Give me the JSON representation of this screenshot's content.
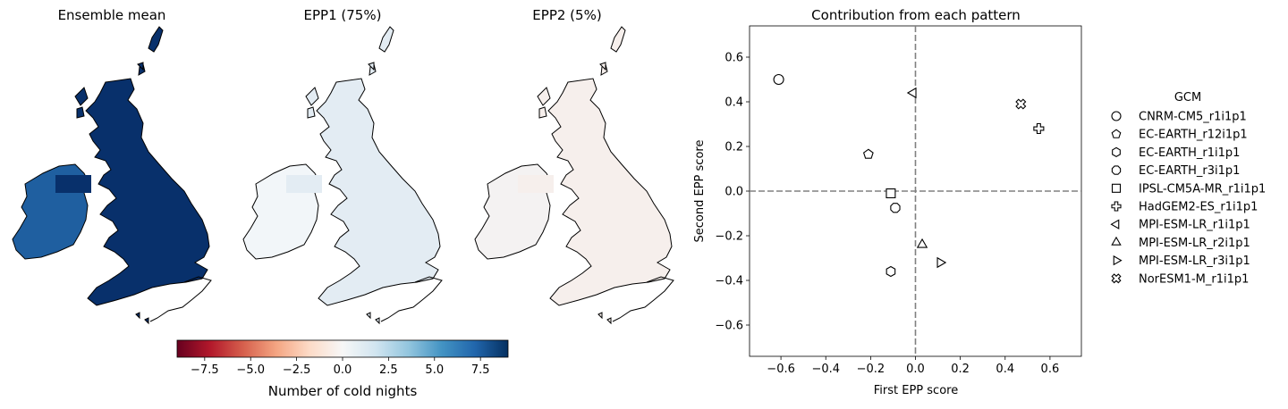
{
  "maps": [
    {
      "title": "Ensemble mean",
      "fill": "#08306b",
      "ireland_fill": "#1f5fa0"
    },
    {
      "title": "EPP1 (75%)",
      "fill": "#e3ecf3",
      "ireland_fill": "#f2f6f9"
    },
    {
      "title": "EPP2 (5%)",
      "fill": "#f6efec",
      "ireland_fill": "#f4f2f2"
    }
  ],
  "colorbar": {
    "label": "Number of cold nights",
    "range": [
      -9,
      9
    ],
    "ticks": [
      -7.5,
      -5.0,
      -2.5,
      0.0,
      2.5,
      5.0,
      7.5
    ],
    "tick_labels": [
      "−7.5",
      "−5.0",
      "−2.5",
      "0.0",
      "2.5",
      "5.0",
      "7.5"
    ],
    "colormap": "RdBu",
    "colors": [
      "#67001f",
      "#b2182b",
      "#d6604d",
      "#f4a582",
      "#fddbc7",
      "#f7f7f7",
      "#d1e5f0",
      "#92c5de",
      "#4393c3",
      "#2166ac",
      "#053061"
    ]
  },
  "chart_data": {
    "type": "scatter",
    "title": "Contribution from each pattern",
    "xlabel": "First EPP score",
    "ylabel": "Second EPP score",
    "xlim": [
      -0.74,
      0.74
    ],
    "ylim": [
      -0.74,
      0.74
    ],
    "xticks": [
      -0.6,
      -0.4,
      -0.2,
      0.0,
      0.2,
      0.4,
      0.6
    ],
    "xtick_labels": [
      "−0.6",
      "−0.4",
      "−0.2",
      "0.0",
      "0.2",
      "0.4",
      "0.6"
    ],
    "yticks": [
      -0.6,
      -0.4,
      -0.2,
      0.0,
      0.2,
      0.4,
      0.6
    ],
    "ytick_labels": [
      "−0.6",
      "−0.4",
      "−0.2",
      "0.0",
      "0.2",
      "0.4",
      "0.6"
    ],
    "reference_lines": {
      "x": 0,
      "y": 0,
      "style": "dashed"
    },
    "legend_title": "GCM",
    "legend_placement": "right, outside",
    "series": [
      {
        "name": "CNRM-CM5_r1i1p1",
        "marker": "circle",
        "x": -0.61,
        "y": 0.5
      },
      {
        "name": "EC-EARTH_r12i1p1",
        "marker": "pentagon",
        "x": -0.21,
        "y": 0.165
      },
      {
        "name": "EC-EARTH_r1i1p1",
        "marker": "hexagon",
        "x": -0.11,
        "y": -0.36
      },
      {
        "name": "EC-EARTH_r3i1p1",
        "marker": "octagon",
        "x": -0.09,
        "y": -0.075
      },
      {
        "name": "IPSL-CM5A-MR_r1i1p1",
        "marker": "square",
        "x": -0.11,
        "y": -0.01
      },
      {
        "name": "HadGEM2-ES_r1i1p1",
        "marker": "plus",
        "x": 0.55,
        "y": 0.28
      },
      {
        "name": "MPI-ESM-LR_r1i1p1",
        "marker": "triangle-left",
        "x": -0.01,
        "y": 0.44
      },
      {
        "name": "MPI-ESM-LR_r2i1p1",
        "marker": "triangle-up",
        "x": 0.03,
        "y": -0.24
      },
      {
        "name": "MPI-ESM-LR_r3i1p1",
        "marker": "triangle-right",
        "x": 0.11,
        "y": -0.32
      },
      {
        "name": "NorESM1-M_r1i1p1",
        "marker": "x-filled",
        "x": 0.47,
        "y": 0.39
      }
    ]
  }
}
